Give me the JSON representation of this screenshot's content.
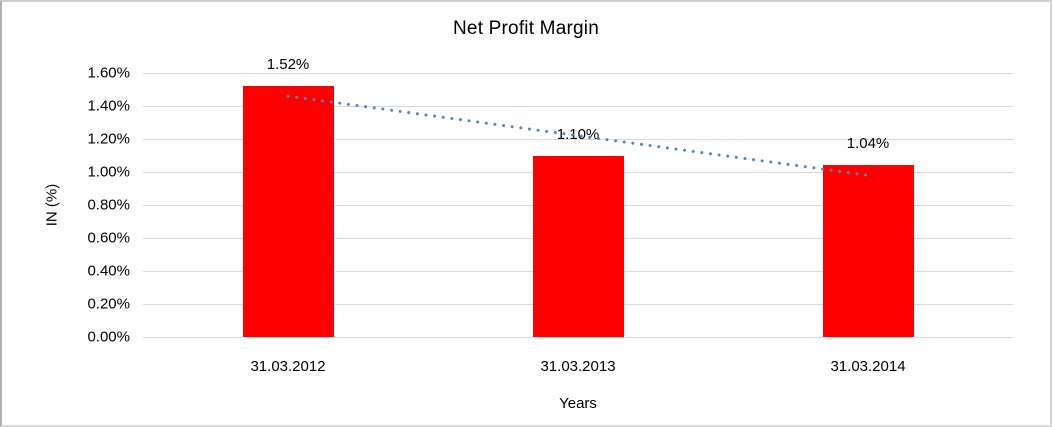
{
  "chart_data": {
    "type": "bar",
    "title": "Net Profit Margin",
    "ylabel": "IN (%)",
    "xlabel": "Years",
    "categories": [
      "31.03.2012",
      "31.03.2013",
      "31.03.2014"
    ],
    "values": [
      1.52,
      1.1,
      1.04
    ],
    "value_labels": [
      "1.52%",
      "1.10%",
      "1.04%"
    ],
    "y_ticks": [
      {
        "v": 1.6,
        "label": "1.60%"
      },
      {
        "v": 1.4,
        "label": "1.40%"
      },
      {
        "v": 1.2,
        "label": "1.20%"
      },
      {
        "v": 1.0,
        "label": "1.00%"
      },
      {
        "v": 0.8,
        "label": "0.80%"
      },
      {
        "v": 0.6,
        "label": "0.60%"
      },
      {
        "v": 0.4,
        "label": "0.40%"
      },
      {
        "v": 0.2,
        "label": "0.20%"
      },
      {
        "v": 0.0,
        "label": "0.00%"
      }
    ],
    "ylim": [
      0,
      1.6
    ],
    "grid": true,
    "legend": "none",
    "bar_color": "#ff0000",
    "trendline": {
      "type": "linear",
      "style": "dotted",
      "color": "#4e86c8"
    }
  }
}
